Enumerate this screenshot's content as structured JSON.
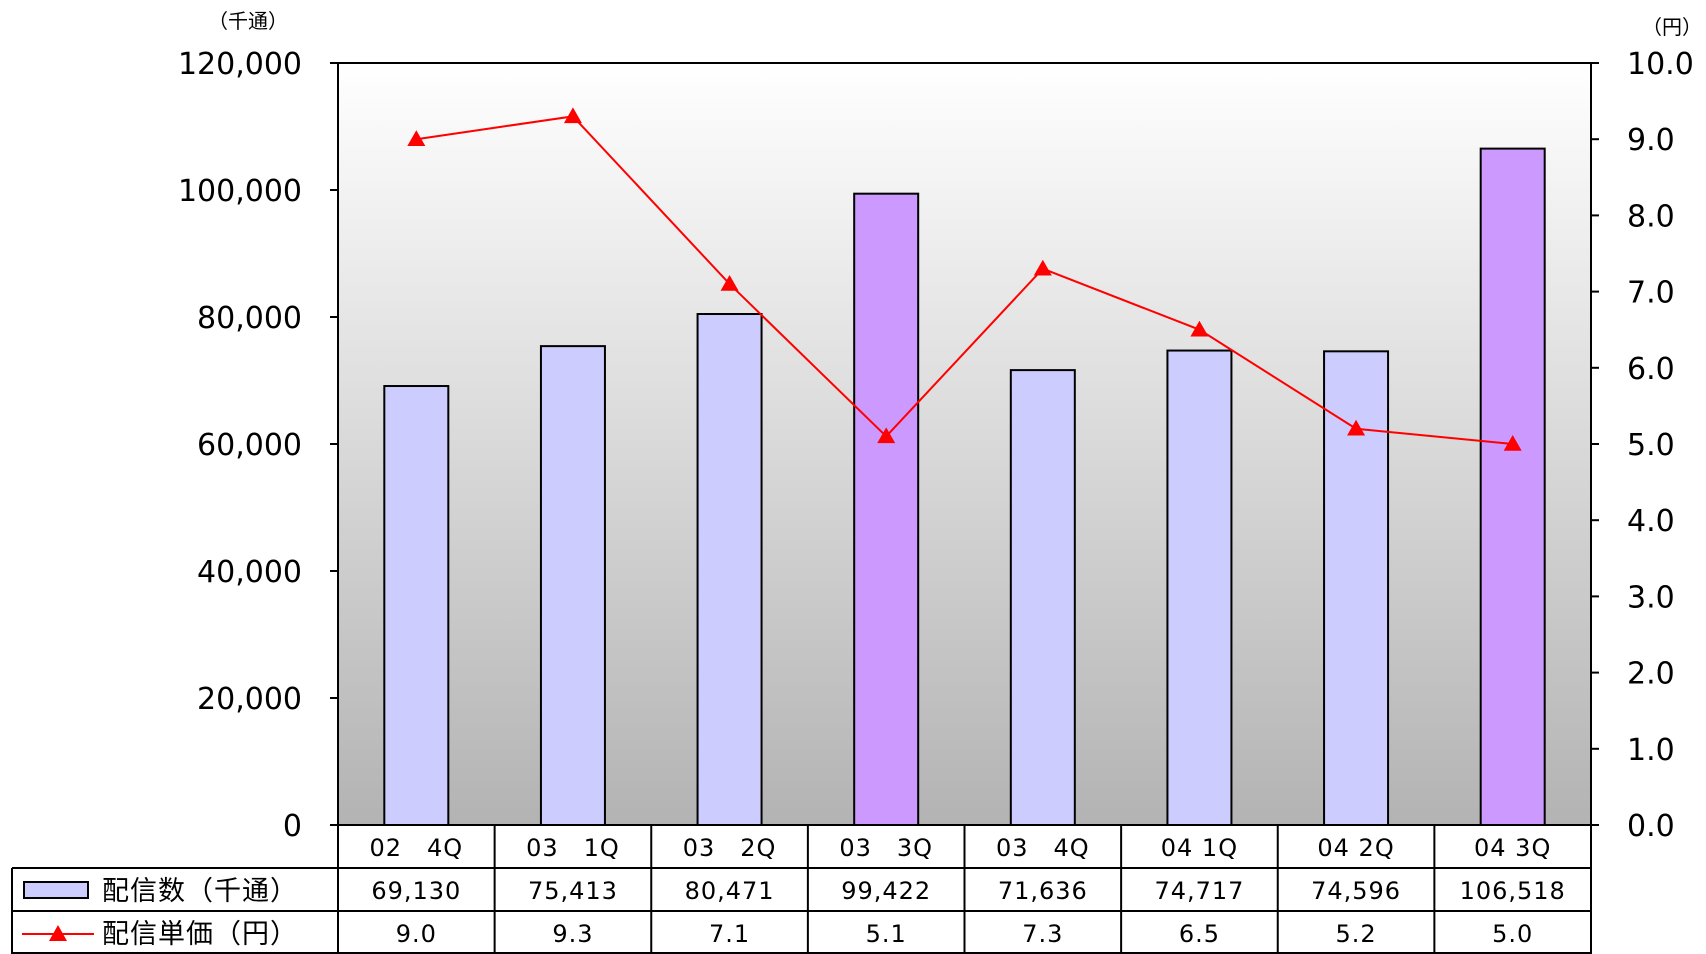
{
  "chart_data": {
    "type": "bar",
    "categories": [
      "02　4Q",
      "03　1Q",
      "03　2Q",
      "03　3Q",
      "03　4Q",
      "04 1Q",
      "04 2Q",
      "04 3Q"
    ],
    "series": [
      {
        "name": "配信数（千通）",
        "kind": "bar",
        "axis": "left",
        "values": [
          69130,
          75413,
          80471,
          99422,
          71636,
          74717,
          74596,
          106518
        ],
        "value_labels": [
          "69,130",
          "75,413",
          "80,471",
          "99,422",
          "71,636",
          "74,717",
          "74,596",
          "106,518"
        ],
        "highlighted": [
          false,
          false,
          false,
          true,
          false,
          false,
          false,
          true
        ]
      },
      {
        "name": "配信単価（円）",
        "kind": "line",
        "axis": "right",
        "marker": "triangle",
        "values": [
          9.0,
          9.3,
          7.1,
          5.1,
          7.3,
          6.5,
          5.2,
          5.0
        ],
        "value_labels": [
          "9.0",
          "9.3",
          "7.1",
          "5.1",
          "7.3",
          "6.5",
          "5.2",
          "5.0"
        ]
      }
    ],
    "y_left": {
      "unit": "（千通）",
      "ylim": [
        0,
        120000
      ],
      "ticks": [
        0,
        20000,
        40000,
        60000,
        80000,
        100000,
        120000
      ],
      "tick_labels": [
        "0",
        "20,000",
        "40,000",
        "60,000",
        "80,000",
        "100,000",
        "120,000"
      ]
    },
    "y_right": {
      "unit": "（円）",
      "ylim": [
        0,
        10
      ],
      "ticks": [
        0,
        1,
        2,
        3,
        4,
        5,
        6,
        7,
        8,
        9,
        10
      ],
      "tick_labels": [
        "0.0",
        "1.0",
        "2.0",
        "3.0",
        "4.0",
        "5.0",
        "6.0",
        "7.0",
        "8.0",
        "9.0",
        "10.0"
      ]
    },
    "data_table": true,
    "grid": false,
    "colors": {
      "bar": "#ccccff",
      "bar_highlight": "#cc99ff",
      "line": "#ff0000",
      "plot_bg_top": "#ffffff",
      "plot_bg_bottom": "#b3b3b3"
    }
  }
}
